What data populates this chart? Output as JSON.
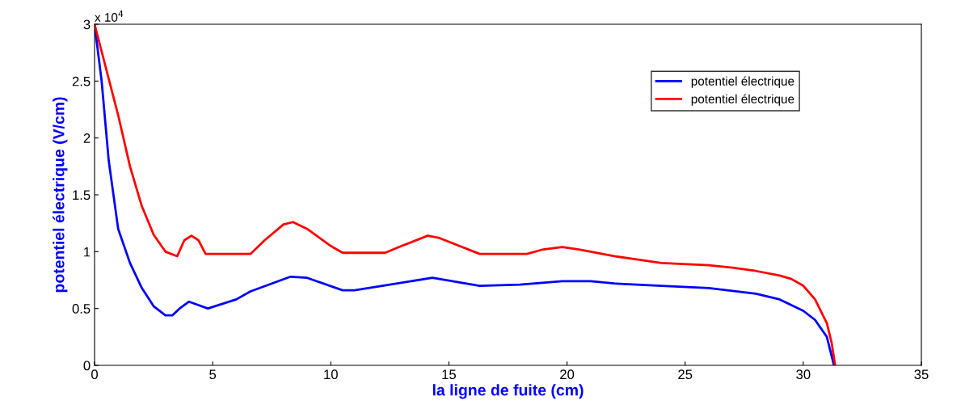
{
  "chart_data": {
    "type": "line",
    "xlabel": "la ligne de fuite (cm)",
    "ylabel": "potentiel électrique (V/cm)",
    "annotations": [
      "x 10$^{4}$"
    ],
    "xlim": [
      0,
      35
    ],
    "ylim": [
      0,
      3
    ],
    "xticks": [
      0,
      5,
      10,
      15,
      20,
      25,
      30,
      35
    ],
    "yticks": [
      0,
      0.5,
      1,
      1.5,
      2,
      2.5,
      3
    ],
    "legend": "top right",
    "grid": false,
    "marker": "none",
    "line_style": "solid",
    "series": [
      {
        "name": "potentiel électrique",
        "color": "#0000ff",
        "x": [
          0,
          0.3,
          0.6,
          1,
          1.5,
          2,
          2.5,
          3,
          3.3,
          3.6,
          4,
          4.8,
          6,
          6.6,
          8.3,
          9,
          10.5,
          11,
          12.5,
          14.3,
          16.3,
          18,
          19.8,
          21,
          22,
          24,
          26,
          28,
          29,
          30,
          30.5,
          31,
          31.3
        ],
        "values": [
          3.0,
          2.5,
          1.8,
          1.2,
          0.9,
          0.68,
          0.52,
          0.44,
          0.44,
          0.5,
          0.56,
          0.5,
          0.58,
          0.65,
          0.78,
          0.77,
          0.66,
          0.66,
          0.71,
          0.77,
          0.7,
          0.71,
          0.74,
          0.74,
          0.72,
          0.7,
          0.68,
          0.63,
          0.58,
          0.48,
          0.4,
          0.25,
          0
        ]
      },
      {
        "name": "potentiel électrique",
        "color": "#ff0000",
        "x": [
          0,
          0.5,
          1,
          1.5,
          2,
          2.5,
          3,
          3.5,
          3.8,
          4.1,
          4.4,
          4.7,
          6.6,
          7.2,
          8,
          8.4,
          9,
          10,
          10.5,
          12.3,
          13,
          14.1,
          14.6,
          16.3,
          18.3,
          19,
          19.8,
          20.5,
          22,
          23,
          24,
          26,
          27,
          28,
          29,
          29.5,
          30,
          30.5,
          31,
          31.2,
          31.35
        ],
        "values": [
          3.0,
          2.6,
          2.2,
          1.75,
          1.4,
          1.15,
          1.0,
          0.96,
          1.1,
          1.14,
          1.1,
          0.98,
          0.98,
          1.1,
          1.24,
          1.26,
          1.2,
          1.05,
          0.99,
          0.99,
          1.05,
          1.14,
          1.12,
          0.98,
          0.98,
          1.02,
          1.04,
          1.02,
          0.96,
          0.93,
          0.9,
          0.88,
          0.86,
          0.83,
          0.79,
          0.76,
          0.7,
          0.58,
          0.37,
          0.2,
          0
        ]
      }
    ]
  }
}
